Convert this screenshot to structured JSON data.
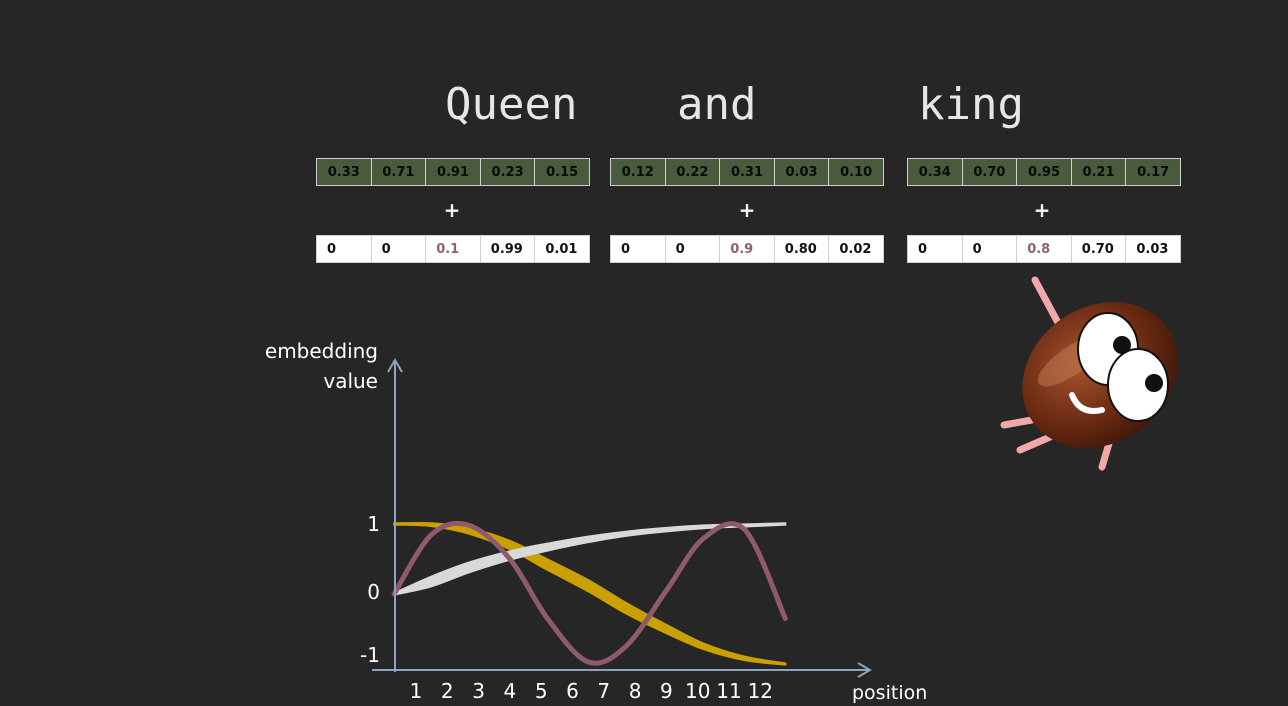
{
  "words": [
    "Queen",
    "and",
    "king"
  ],
  "plus_sign": "+",
  "word_embeddings": [
    [
      "0.33",
      "0.71",
      "0.91",
      "0.23",
      "0.15"
    ],
    [
      "0.12",
      "0.22",
      "0.31",
      "0.03",
      "0.10"
    ],
    [
      "0.34",
      "0.70",
      "0.95",
      "0.21",
      "0.17"
    ]
  ],
  "position_encodings": [
    [
      "0",
      "0",
      "0.1",
      "0.99",
      "0.01"
    ],
    [
      "0",
      "0",
      "0.9",
      "0.80",
      "0.02"
    ],
    [
      "0",
      "0",
      "0.8",
      "0.70",
      "0.03"
    ]
  ],
  "colors": {
    "background": "#262626",
    "embedding_cell": "#4a5a3c",
    "highlight_value": "#8a6470",
    "series_pink": "#8f5a6c",
    "series_gold": "#c9a000",
    "series_white": "#d9d9d9",
    "axis": "#8fa3bf"
  },
  "chart_data": {
    "type": "line",
    "ylabel_lines": [
      "embedding",
      "value"
    ],
    "xlabel": "position",
    "x_ticks": [
      1,
      2,
      3,
      4,
      5,
      6,
      7,
      8,
      9,
      10,
      11,
      12
    ],
    "y_ticks": [
      1,
      0,
      -1
    ],
    "xlim": [
      0.3,
      13.0
    ],
    "ylim": [
      -1,
      1
    ],
    "grid": false,
    "series": [
      {
        "color": "#8f5a6c",
        "style": "line",
        "x": [
          0.3,
          1.5,
          2.7,
          4.0,
          5.2,
          6.5,
          7.7,
          9.0,
          10.2,
          11.5,
          12.8
        ],
        "y": [
          0.0,
          0.85,
          0.98,
          0.5,
          -0.35,
          -0.97,
          -0.75,
          0.05,
          0.8,
          0.92,
          -0.35
        ]
      },
      {
        "color": "#c9a000",
        "style": "band",
        "x": [
          0.3,
          1.5,
          2.7,
          4.0,
          5.2,
          6.5,
          7.7,
          9.0,
          10.2,
          11.5,
          12.8
        ],
        "y": [
          1.0,
          0.99,
          0.9,
          0.7,
          0.42,
          0.12,
          -0.2,
          -0.5,
          -0.75,
          -0.92,
          -1.0
        ],
        "band_width": [
          0.02,
          0.04,
          0.08,
          0.12,
          0.15,
          0.16,
          0.15,
          0.12,
          0.08,
          0.05,
          0.02
        ]
      },
      {
        "color": "#d9d9d9",
        "style": "band",
        "x": [
          0.3,
          1.5,
          2.7,
          4.0,
          5.2,
          6.5,
          7.7,
          9.0,
          10.2,
          11.5,
          12.8
        ],
        "y": [
          0.0,
          0.18,
          0.38,
          0.55,
          0.67,
          0.78,
          0.86,
          0.92,
          0.96,
          0.98,
          1.0
        ],
        "band_width": [
          0.02,
          0.14,
          0.14,
          0.12,
          0.1,
          0.08,
          0.06,
          0.05,
          0.04,
          0.03,
          0.02
        ]
      }
    ]
  }
}
